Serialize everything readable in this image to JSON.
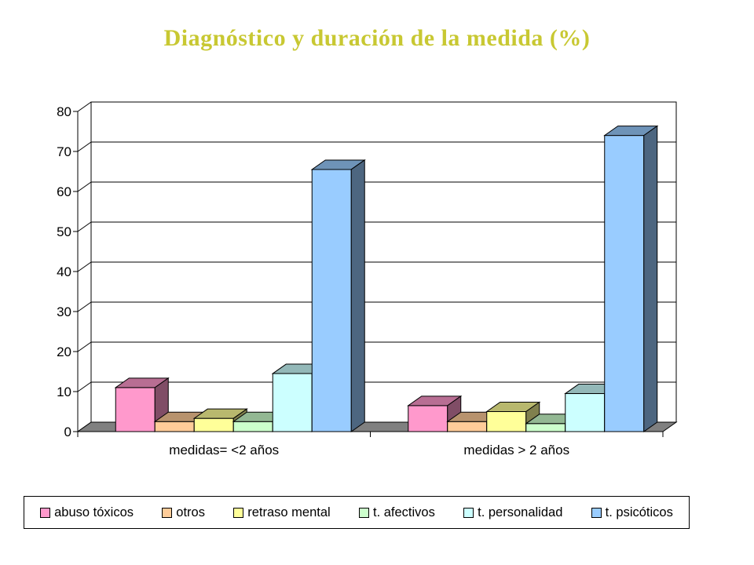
{
  "chart_data": {
    "type": "bar",
    "title": "Diagnóstico y duración de la medida (%)",
    "categories": [
      "medidas= <2 años",
      "medidas > 2 años"
    ],
    "series": [
      {
        "name": "abuso tóxicos",
        "values": [
          11,
          6.5
        ],
        "color": "#ff99cc"
      },
      {
        "name": "otros",
        "values": [
          2.5,
          2.5
        ],
        "color": "#ffcc99"
      },
      {
        "name": "retraso mental",
        "values": [
          3.3,
          5.0
        ],
        "color": "#ffff99"
      },
      {
        "name": "t. afectivos",
        "values": [
          2.5,
          2.0
        ],
        "color": "#ccffcc"
      },
      {
        "name": "t. personalidad",
        "values": [
          14.5,
          9.5
        ],
        "color": "#ccffff"
      },
      {
        "name": "t. psicóticos",
        "values": [
          65.5,
          74
        ],
        "color": "#99ccff"
      }
    ],
    "ylim": [
      0,
      80
    ],
    "yticks": [
      "0",
      "10",
      "20",
      "30",
      "40",
      "50",
      "60",
      "70",
      "80"
    ],
    "xlabel": "",
    "ylabel": "",
    "grid": true,
    "legend": "bottom"
  }
}
